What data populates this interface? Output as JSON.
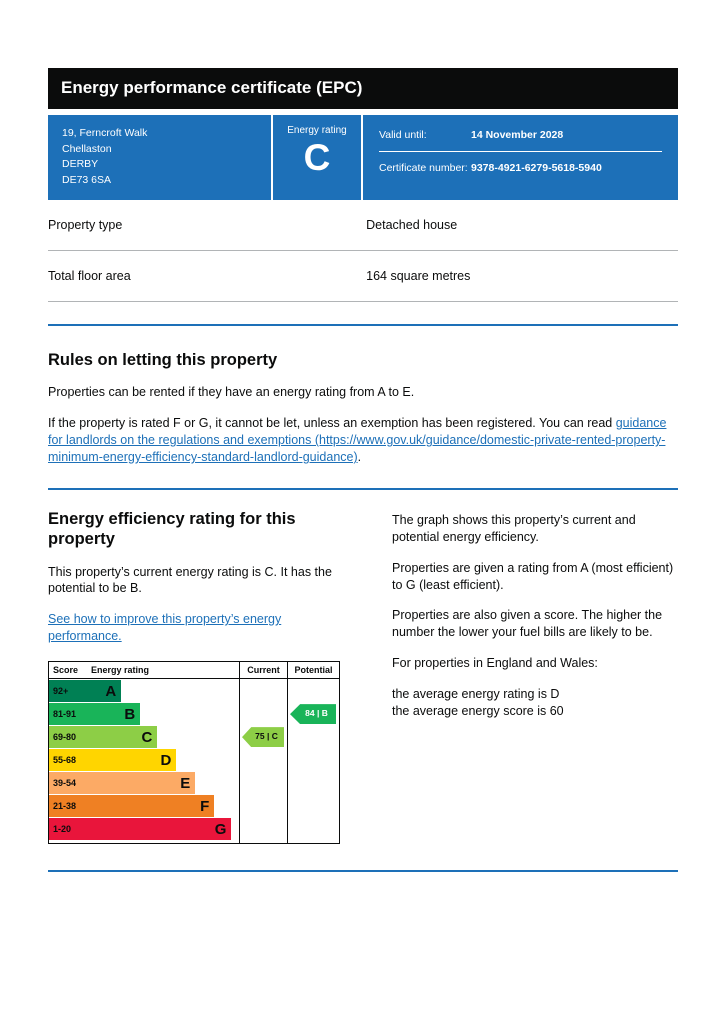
{
  "page": {
    "title": "Energy performance certificate (EPC)"
  },
  "summary": {
    "address_lines": [
      "19, Ferncroft Walk",
      "Chellaston",
      "DERBY",
      "DE73 6SA"
    ],
    "energy_rating_label": "Energy rating",
    "energy_rating": "C",
    "valid_until_label": "Valid until:",
    "valid_until_value": "14 November 2028",
    "certificate_number_label": "Certificate number:",
    "certificate_number_value": "9378-4921-6279-5618-5940"
  },
  "property_details": [
    {
      "label": "Property type",
      "value": "Detached house"
    },
    {
      "label": "Total floor area",
      "value": "164 square metres"
    }
  ],
  "rules_section": {
    "heading": "Rules on letting this property",
    "para1": "Properties can be rented if they have an energy rating from A to E.",
    "para2_before_link": "If the property is rated F or G, it cannot be let, unless an exemption has been registered. You can read ",
    "link_text": "guidance for landlords on the regulations and exemptions (https://www.gov.uk/guidance/domestic-private-rented-property-minimum-energy-efficiency-standard-landlord-guidance)",
    "para2_after_link": "."
  },
  "rating_section": {
    "heading": "Energy efficiency rating for this property",
    "para1": "This property’s current energy rating is C. It has the potential to be B.",
    "link_text": "See how to improve this property’s energy performance.",
    "right_paras": [
      "The graph shows this property’s current and potential energy efficiency.",
      "Properties are given a rating from A (most efficient) to G (least efficient).",
      "Properties are also given a score. The higher the number the lower your fuel bills are likely to be.",
      "For properties in England and Wales:"
    ],
    "average_lines": [
      "the average energy rating is D",
      "the average energy score is 60"
    ]
  },
  "chart_data": {
    "type": "bar",
    "title": "Energy efficiency rating bands",
    "headers": {
      "score": "Score",
      "rating": "Energy rating",
      "current": "Current",
      "potential": "Potential"
    },
    "bands": [
      {
        "score": "92+",
        "letter": "A",
        "color": "#008054",
        "width_pct": 38
      },
      {
        "score": "81-91",
        "letter": "B",
        "color": "#19b459",
        "width_pct": 48
      },
      {
        "score": "69-80",
        "letter": "C",
        "color": "#8dce46",
        "width_pct": 57
      },
      {
        "score": "55-68",
        "letter": "D",
        "color": "#ffd500",
        "width_pct": 67
      },
      {
        "score": "39-54",
        "letter": "E",
        "color": "#fcaa65",
        "width_pct": 77
      },
      {
        "score": "21-38",
        "letter": "F",
        "color": "#ef8023",
        "width_pct": 87
      },
      {
        "score": "1-20",
        "letter": "G",
        "color": "#e9153b",
        "width_pct": 96
      }
    ],
    "current": {
      "value": 75,
      "letter": "C",
      "band_index": 2,
      "color": "#8dce46",
      "text_color": "#0b0c0c"
    },
    "potential": {
      "value": 84,
      "letter": "B",
      "band_index": 1,
      "color": "#19b459",
      "text_color": "#ffffff"
    }
  },
  "colors": {
    "govuk_blue": "#1d70b8",
    "header_bg": "#0b0c0c",
    "border_grey": "#b1b4b6"
  }
}
